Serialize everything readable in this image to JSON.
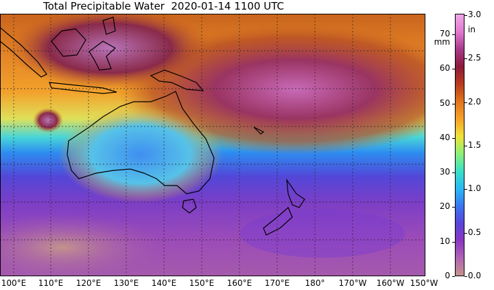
{
  "title": "Total Precipitable Water  2020-01-14 1100 UTC",
  "longitude_labels": [
    "100°E",
    "110°E",
    "120°E",
    "130°E",
    "140°E",
    "150°E",
    "160°E",
    "170°E",
    "180°",
    "170°W",
    "160°W",
    "150°W"
  ],
  "colorbar": {
    "mm_unit": "mm",
    "in_unit": "in",
    "mm_labels": [
      "0",
      "10",
      "20",
      "30",
      "40",
      "50",
      "60",
      "70"
    ],
    "in_labels": [
      "0.0",
      "0.5",
      "1.0",
      "1.5",
      "2.0",
      "2.5",
      "3.0"
    ],
    "colors": [
      "#c4938c",
      "#b064b4",
      "#8a36c0",
      "#5a44d8",
      "#3a76f2",
      "#2ab8f4",
      "#3ae0c8",
      "#8ef078",
      "#f0e238",
      "#f6a22a",
      "#e0741e",
      "#b83c1e",
      "#8c1a3a",
      "#a83a8a",
      "#e07ad0",
      "#f0a6e6"
    ]
  },
  "map": {
    "background_colors": {
      "deep_south": "#8e45b8",
      "south_band": "#5a4fe0",
      "cyan_band": "#34c9f0",
      "mid_band": "#f6a52c",
      "tropics": "#c2541e",
      "core": "#8c2a4a"
    }
  }
}
